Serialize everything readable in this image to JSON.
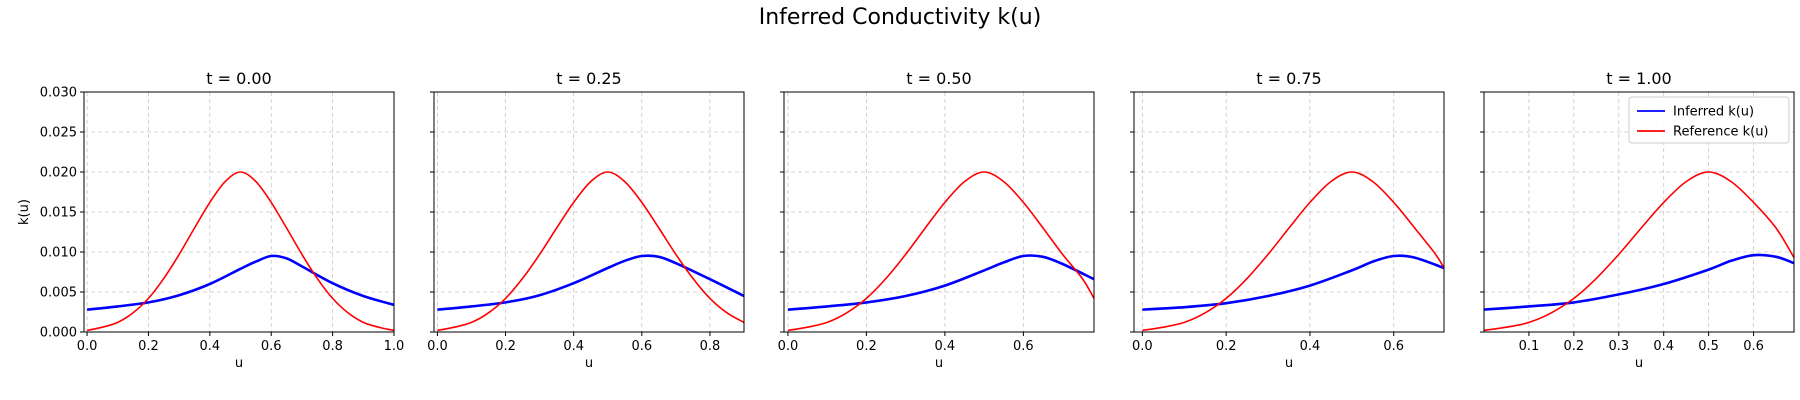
{
  "figure": {
    "title": "Inferred Conductivity k(u)"
  },
  "colors": {
    "inferred": "#0000ff",
    "reference": "#ff0000"
  },
  "chart_data": [
    {
      "type": "line",
      "title": "t = 0.00",
      "xlabel": "u",
      "ylabel": "k(u)",
      "xlim": [
        -0.01,
        1.0
      ],
      "ylim": [
        0,
        0.03
      ],
      "xticks": [
        0.0,
        0.2,
        0.4,
        0.6,
        0.8,
        1.0
      ],
      "xtick_labels": [
        "0.0",
        "0.2",
        "0.4",
        "0.6",
        "0.8",
        "1.0"
      ],
      "yticks": [
        0.0,
        0.005,
        0.01,
        0.015,
        0.02,
        0.025,
        0.03
      ],
      "ytick_labels": [
        "0.000",
        "0.005",
        "0.010",
        "0.015",
        "0.020",
        "0.025",
        "0.030"
      ],
      "grid": true,
      "u_max": 1.0,
      "series": [
        {
          "name": "Inferred k(u)",
          "color": "#0000ff",
          "x": [
            0.0,
            0.1,
            0.2,
            0.3,
            0.4,
            0.5,
            0.55,
            0.6,
            0.65,
            0.7,
            0.8,
            0.9,
            1.0
          ],
          "y": [
            0.0028,
            0.0032,
            0.0037,
            0.0046,
            0.006,
            0.0079,
            0.0088,
            0.0095,
            0.0092,
            0.0082,
            0.0061,
            0.0045,
            0.0034
          ]
        },
        {
          "name": "Reference k(u)",
          "color": "#ff0000",
          "x": [
            0.0,
            0.05,
            0.1,
            0.15,
            0.2,
            0.25,
            0.3,
            0.35,
            0.4,
            0.45,
            0.5,
            0.55,
            0.6,
            0.65,
            0.7,
            0.75,
            0.8,
            0.85,
            0.9,
            0.95,
            1.0
          ],
          "y": [
            0.0002,
            0.0006,
            0.0012,
            0.0024,
            0.0042,
            0.0067,
            0.0097,
            0.013,
            0.0162,
            0.0188,
            0.02,
            0.0188,
            0.0162,
            0.013,
            0.0097,
            0.0067,
            0.0042,
            0.0024,
            0.0012,
            0.0006,
            0.0002
          ]
        }
      ]
    },
    {
      "type": "line",
      "title": "t = 0.25",
      "xlabel": "u",
      "ylabel": "",
      "xlim": [
        -0.01,
        0.9
      ],
      "ylim": [
        0,
        0.03
      ],
      "xticks": [
        0.0,
        0.2,
        0.4,
        0.6,
        0.8
      ],
      "xtick_labels": [
        "0.0",
        "0.2",
        "0.4",
        "0.6",
        "0.8"
      ],
      "yticks": [
        0.0,
        0.005,
        0.01,
        0.015,
        0.02,
        0.025,
        0.03
      ],
      "ytick_labels": [],
      "grid": true,
      "u_max": 0.9,
      "series": [
        {
          "name": "Inferred k(u)",
          "color": "#0000ff",
          "x": [
            0.0,
            0.1,
            0.2,
            0.3,
            0.4,
            0.5,
            0.55,
            0.6,
            0.65,
            0.7,
            0.8,
            0.9
          ],
          "y": [
            0.0028,
            0.0032,
            0.0037,
            0.0046,
            0.0061,
            0.008,
            0.0089,
            0.0095,
            0.0094,
            0.0086,
            0.0066,
            0.0045
          ]
        },
        {
          "name": "Reference k(u)",
          "color": "#ff0000",
          "x": [
            0.0,
            0.05,
            0.1,
            0.15,
            0.2,
            0.25,
            0.3,
            0.35,
            0.4,
            0.45,
            0.5,
            0.55,
            0.6,
            0.65,
            0.7,
            0.75,
            0.8,
            0.85,
            0.9
          ],
          "y": [
            0.0002,
            0.0006,
            0.0012,
            0.0024,
            0.0042,
            0.0067,
            0.0097,
            0.013,
            0.0162,
            0.0188,
            0.02,
            0.0188,
            0.0162,
            0.013,
            0.0097,
            0.0067,
            0.0042,
            0.0024,
            0.0012
          ]
        }
      ]
    },
    {
      "type": "line",
      "title": "t = 0.50",
      "xlabel": "u",
      "ylabel": "",
      "xlim": [
        -0.01,
        0.78
      ],
      "ylim": [
        0,
        0.03
      ],
      "xticks": [
        0.0,
        0.2,
        0.4,
        0.6
      ],
      "xtick_labels": [
        "0.0",
        "0.2",
        "0.4",
        "0.6"
      ],
      "yticks": [
        0.0,
        0.005,
        0.01,
        0.015,
        0.02,
        0.025,
        0.03
      ],
      "ytick_labels": [],
      "grid": true,
      "u_max": 0.78,
      "series": [
        {
          "name": "Inferred k(u)",
          "color": "#0000ff",
          "x": [
            0.0,
            0.1,
            0.2,
            0.3,
            0.4,
            0.5,
            0.55,
            0.6,
            0.65,
            0.7,
            0.78
          ],
          "y": [
            0.0028,
            0.0032,
            0.0037,
            0.0045,
            0.0058,
            0.0077,
            0.0087,
            0.0095,
            0.0094,
            0.0085,
            0.0066
          ]
        },
        {
          "name": "Reference k(u)",
          "color": "#ff0000",
          "x": [
            0.0,
            0.05,
            0.1,
            0.15,
            0.2,
            0.25,
            0.3,
            0.35,
            0.4,
            0.45,
            0.5,
            0.55,
            0.6,
            0.65,
            0.7,
            0.75,
            0.78
          ],
          "y": [
            0.0002,
            0.0006,
            0.0012,
            0.0024,
            0.0042,
            0.0067,
            0.0097,
            0.013,
            0.0162,
            0.0188,
            0.02,
            0.0188,
            0.0162,
            0.013,
            0.0097,
            0.0067,
            0.0042
          ]
        }
      ]
    },
    {
      "type": "line",
      "title": "t = 0.75",
      "xlabel": "u",
      "ylabel": "",
      "xlim": [
        -0.02,
        0.72
      ],
      "ylim": [
        0,
        0.03
      ],
      "xticks": [
        0.0,
        0.2,
        0.4,
        0.6
      ],
      "xtick_labels": [
        "0.0",
        "0.2",
        "0.4",
        "0.6"
      ],
      "yticks": [
        0.0,
        0.005,
        0.01,
        0.015,
        0.02,
        0.025,
        0.03
      ],
      "ytick_labels": [],
      "grid": true,
      "u_max": 0.72,
      "series": [
        {
          "name": "Inferred k(u)",
          "color": "#0000ff",
          "x": [
            0.0,
            0.1,
            0.2,
            0.3,
            0.4,
            0.5,
            0.55,
            0.6,
            0.65,
            0.72
          ],
          "y": [
            0.0028,
            0.0031,
            0.0036,
            0.0045,
            0.0058,
            0.0077,
            0.0088,
            0.0095,
            0.0093,
            0.008
          ]
        },
        {
          "name": "Reference k(u)",
          "color": "#ff0000",
          "x": [
            0.0,
            0.05,
            0.1,
            0.15,
            0.2,
            0.25,
            0.3,
            0.35,
            0.4,
            0.45,
            0.5,
            0.55,
            0.6,
            0.65,
            0.7,
            0.72
          ],
          "y": [
            0.0002,
            0.0006,
            0.0012,
            0.0024,
            0.0042,
            0.0067,
            0.0097,
            0.013,
            0.0162,
            0.0188,
            0.02,
            0.0188,
            0.0162,
            0.013,
            0.0097,
            0.008
          ]
        }
      ]
    },
    {
      "type": "line",
      "title": "t = 1.00",
      "xlabel": "u",
      "ylabel": "",
      "xlim": [
        0.0,
        0.69
      ],
      "ylim": [
        0,
        0.03
      ],
      "xticks": [
        0.1,
        0.2,
        0.3,
        0.4,
        0.5,
        0.6
      ],
      "xtick_labels": [
        "0.1",
        "0.2",
        "0.3",
        "0.4",
        "0.5",
        "0.6"
      ],
      "yticks": [
        0.0,
        0.005,
        0.01,
        0.015,
        0.02,
        0.025,
        0.03
      ],
      "ytick_labels": [],
      "grid": true,
      "u_max": 0.69,
      "legend": "top-right",
      "series": [
        {
          "name": "Inferred k(u)",
          "color": "#0000ff",
          "x": [
            0.0,
            0.1,
            0.2,
            0.3,
            0.4,
            0.5,
            0.55,
            0.6,
            0.65,
            0.69
          ],
          "y": [
            0.0028,
            0.0032,
            0.0037,
            0.0047,
            0.006,
            0.0078,
            0.0089,
            0.0096,
            0.0094,
            0.0086
          ]
        },
        {
          "name": "Reference k(u)",
          "color": "#ff0000",
          "x": [
            0.0,
            0.05,
            0.1,
            0.15,
            0.2,
            0.25,
            0.3,
            0.35,
            0.4,
            0.45,
            0.5,
            0.55,
            0.6,
            0.65,
            0.69
          ],
          "y": [
            0.0002,
            0.0006,
            0.0012,
            0.0024,
            0.0042,
            0.0067,
            0.0097,
            0.013,
            0.0162,
            0.0188,
            0.02,
            0.0188,
            0.0162,
            0.013,
            0.0093
          ]
        }
      ]
    }
  ],
  "legend": {
    "items": [
      "Inferred k(u)",
      "Reference k(u)"
    ]
  }
}
